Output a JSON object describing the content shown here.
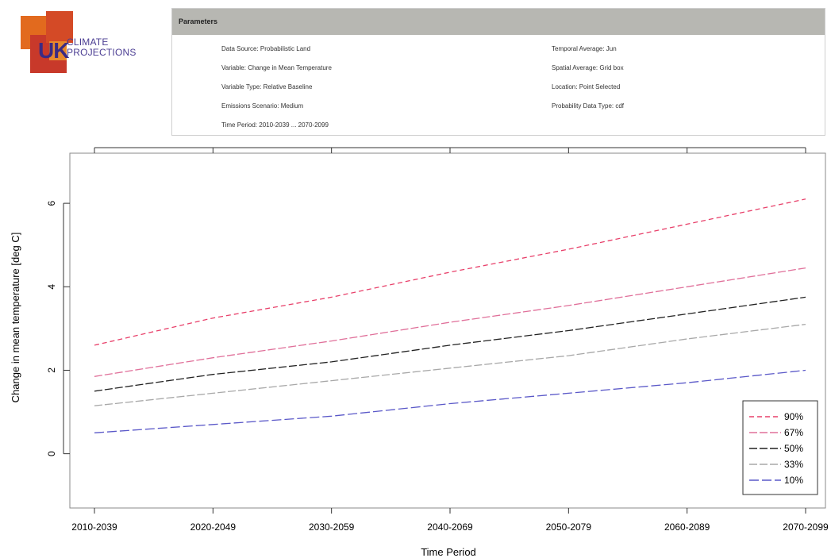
{
  "logo": {
    "brand": "UK",
    "line1": "CLIMATE",
    "line2": "PROJECTIONS"
  },
  "params": {
    "title": "Parameters",
    "left": [
      "Data Source: Probabilistic Land",
      "Variable: Change in Mean Temperature",
      "Variable Type: Relative Baseline",
      "Emissions Scenario: Medium",
      "Time Period: 2010-2039 ... 2070-2099"
    ],
    "right": [
      "Temporal Average: Jun",
      "Spatial Average: Grid box",
      "Location: Point Selected",
      "Probability Data Type: cdf"
    ]
  },
  "colors": {
    "p90": "#e8406a",
    "p67": "#e0709a",
    "p50": "#222222",
    "p33": "#a8a8a8",
    "p10": "#5a58c8"
  },
  "chart_data": {
    "type": "line",
    "title": "",
    "xlabel": "Time Period",
    "ylabel": "Change in mean temperature [deg C]",
    "categories": [
      "2010-2039",
      "2020-2049",
      "2030-2059",
      "2040-2069",
      "2050-2079",
      "2060-2089",
      "2070-2099"
    ],
    "y_ticks": [
      "0",
      "2",
      "4",
      "6"
    ],
    "ylim": [
      -1.3,
      7.2
    ],
    "legend_position": "bottom-right",
    "grid": false,
    "series": [
      {
        "name": "90%",
        "color": "#e8406a",
        "dash": "6,4",
        "values": [
          2.6,
          3.25,
          3.75,
          4.35,
          4.9,
          5.5,
          6.1
        ]
      },
      {
        "name": "67%",
        "color": "#e0709a",
        "dash": "10,3",
        "values": [
          1.85,
          2.3,
          2.7,
          3.15,
          3.55,
          4.0,
          4.45
        ]
      },
      {
        "name": "50%",
        "color": "#222222",
        "dash": "10,3",
        "values": [
          1.5,
          1.9,
          2.2,
          2.6,
          2.95,
          3.35,
          3.75
        ]
      },
      {
        "name": "33%",
        "color": "#a8a8a8",
        "dash": "10,3",
        "values": [
          1.15,
          1.45,
          1.75,
          2.05,
          2.35,
          2.75,
          3.1
        ]
      },
      {
        "name": "10%",
        "color": "#5a58c8",
        "dash": "12,4",
        "values": [
          0.5,
          0.7,
          0.9,
          1.2,
          1.45,
          1.7,
          2.0
        ]
      }
    ]
  }
}
